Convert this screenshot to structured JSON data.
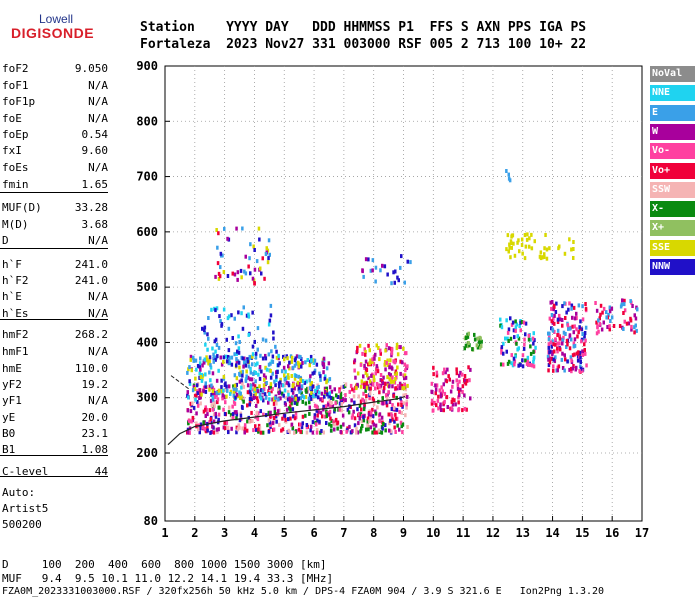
{
  "logo": {
    "top": "Lowell",
    "bottom": "DIGISONDE"
  },
  "header": {
    "line1": "Station    YYYY DAY   DDD HHMMSS P1  FFS S AXN PPS IGA PS",
    "line2": "Fortaleza  2023 Nov27 331 003000 RSF 005 2 713 100 10+ 22"
  },
  "params": [
    {
      "k": "foF2",
      "v": "9.050"
    },
    {
      "k": "foF1",
      "v": "N/A"
    },
    {
      "k": "foF1p",
      "v": "N/A"
    },
    {
      "k": "foE",
      "v": "N/A"
    },
    {
      "k": "foEp",
      "v": "0.54"
    },
    {
      "k": "fxI",
      "v": "9.60"
    },
    {
      "k": "foEs",
      "v": "N/A"
    },
    {
      "k": "fmin",
      "v": "1.65"
    },
    {
      "k": "MUF(D)",
      "v": "33.28"
    },
    {
      "k": "M(D)",
      "v": "3.68"
    },
    {
      "k": "D",
      "v": "N/A"
    },
    {
      "k": "h`F",
      "v": "241.0"
    },
    {
      "k": "h`F2",
      "v": "241.0"
    },
    {
      "k": "h`E",
      "v": "N/A"
    },
    {
      "k": "h`Es",
      "v": "N/A"
    },
    {
      "k": "hmF2",
      "v": "268.2"
    },
    {
      "k": "hmF1",
      "v": "N/A"
    },
    {
      "k": "hmE",
      "v": "110.0"
    },
    {
      "k": "yF2",
      "v": "19.2"
    },
    {
      "k": "yF1",
      "v": "N/A"
    },
    {
      "k": "yE",
      "v": "20.0"
    },
    {
      "k": "B0",
      "v": "23.1"
    },
    {
      "k": "B1",
      "v": "1.08"
    },
    {
      "k": "C-level",
      "v": "44"
    }
  ],
  "auto": [
    "Auto:",
    "Artist5",
    "500200"
  ],
  "footer": {
    "d_row": "D     100  200  400  600  800 1000 1500 3000 [km]",
    "muf_row": "MUF   9.4  9.5 10.1 11.0 12.2 14.1 19.4 33.3 [MHz]",
    "file_row": "FZA0M_2023331003000.RSF / 320fx256h 50 kHz 5.0 km / DPS-4 FZA0M 904 / 3.9 S 321.6 E   Ion2Png 1.3.20"
  },
  "legend": [
    {
      "label": "NoVal",
      "color": "#8c8c8c"
    },
    {
      "label": "NNE",
      "color": "#1fd3f0"
    },
    {
      "label": "E",
      "color": "#3aa0e8"
    },
    {
      "label": "W",
      "color": "#a8009c"
    },
    {
      "label": "Vo-",
      "color": "#ff40a0"
    },
    {
      "label": "Vo+",
      "color": "#f0003a"
    },
    {
      "label": "SSW",
      "color": "#f5b4b4"
    },
    {
      "label": "X-",
      "color": "#0a8a10"
    },
    {
      "label": "X+",
      "color": "#90c060"
    },
    {
      "label": "SSE",
      "color": "#d8d800"
    },
    {
      "label": "NNW",
      "color": "#2010c8"
    }
  ],
  "chart_data": {
    "type": "scatter",
    "xlim": [
      1,
      17
    ],
    "ylim": [
      80,
      900
    ],
    "xticks": [
      "1",
      "2",
      "3",
      "4",
      "5",
      "6",
      "7",
      "8",
      "9",
      "10",
      "11",
      "12",
      "13",
      "14",
      "15",
      "16",
      "17"
    ],
    "yticks": [
      "80",
      "200",
      "300",
      "400",
      "500",
      "600",
      "700",
      "800",
      "900"
    ],
    "profile_curve": [
      [
        1.1,
        215
      ],
      [
        1.5,
        235
      ],
      [
        2,
        248
      ],
      [
        3,
        258
      ],
      [
        4,
        265
      ],
      [
        5,
        272
      ],
      [
        6,
        278
      ],
      [
        7,
        284
      ],
      [
        8,
        292
      ],
      [
        8.8,
        298
      ],
      [
        9.05,
        302
      ]
    ],
    "trace_line": [
      [
        1.2,
        340
      ],
      [
        1.8,
        316
      ]
    ],
    "clusters": [
      {
        "x": [
          1.7,
          9.1
        ],
        "y": [
          240,
          330
        ],
        "colors": [
          "#f0003a",
          "#a8009c",
          "#ff40a0",
          "#0a8a10",
          "#f5b4b4",
          "#2010c8"
        ],
        "n": 650
      },
      {
        "x": [
          1.7,
          6.5
        ],
        "y": [
          300,
          380
        ],
        "colors": [
          "#3aa0e8",
          "#1fd3f0",
          "#2010c8",
          "#a8009c",
          "#d8d800"
        ],
        "n": 380
      },
      {
        "x": [
          2.2,
          4.8
        ],
        "y": [
          360,
          470
        ],
        "colors": [
          "#3aa0e8",
          "#1fd3f0",
          "#2010c8"
        ],
        "n": 90
      },
      {
        "x": [
          2.5,
          4.5
        ],
        "y": [
          510,
          610
        ],
        "colors": [
          "#a8009c",
          "#f0003a",
          "#d8d800",
          "#2010c8",
          "#3aa0e8"
        ],
        "n": 55
      },
      {
        "x": [
          7.5,
          9.2
        ],
        "y": [
          510,
          560
        ],
        "colors": [
          "#2010c8",
          "#a8009c",
          "#3aa0e8"
        ],
        "n": 25
      },
      {
        "x": [
          7.3,
          9.1
        ],
        "y": [
          320,
          400
        ],
        "colors": [
          "#d8d800",
          "#f0003a",
          "#a8009c",
          "#ff40a0"
        ],
        "n": 160
      },
      {
        "x": [
          9.9,
          11.2
        ],
        "y": [
          280,
          360
        ],
        "colors": [
          "#f0003a",
          "#ff40a0",
          "#a8009c"
        ],
        "n": 90
      },
      {
        "x": [
          11,
          11.6
        ],
        "y": [
          390,
          420
        ],
        "colors": [
          "#0a8a10",
          "#90c060"
        ],
        "n": 30
      },
      {
        "x": [
          12.2,
          13.4
        ],
        "y": [
          360,
          450
        ],
        "colors": [
          "#0a8a10",
          "#2010c8",
          "#1fd3f0",
          "#ff40a0"
        ],
        "n": 90
      },
      {
        "x": [
          13.8,
          15.1
        ],
        "y": [
          350,
          480
        ],
        "colors": [
          "#2010c8",
          "#3aa0e8",
          "#a8009c",
          "#f0003a",
          "#ff40a0"
        ],
        "n": 180
      },
      {
        "x": [
          15.4,
          16.8
        ],
        "y": [
          420,
          480
        ],
        "colors": [
          "#a8009c",
          "#f0003a",
          "#ff40a0",
          "#3aa0e8"
        ],
        "n": 60
      },
      {
        "x": [
          12.4,
          14.7
        ],
        "y": [
          555,
          600
        ],
        "colors": [
          "#d8d800"
        ],
        "n": 50
      },
      {
        "x": [
          12.3,
          12.6
        ],
        "y": [
          690,
          715
        ],
        "colors": [
          "#3aa0e8"
        ],
        "n": 4
      }
    ]
  }
}
